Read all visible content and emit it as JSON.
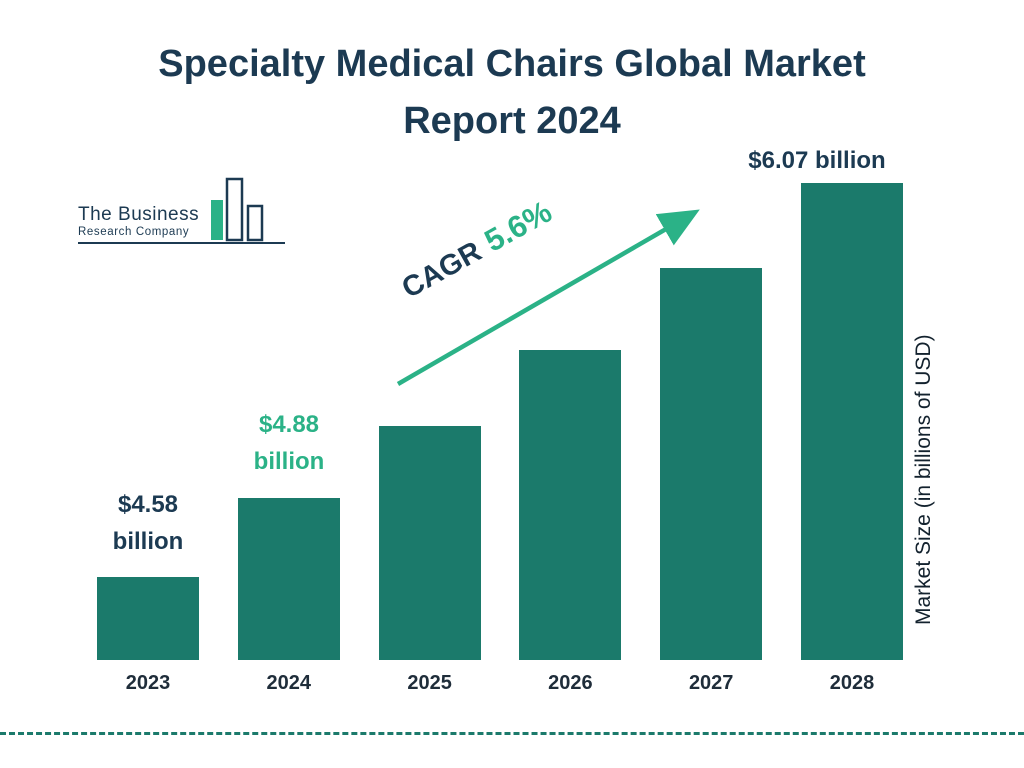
{
  "title": {
    "line1": "Specialty Medical Chairs Global Market",
    "line2": "Report 2024"
  },
  "logo": {
    "line1": "The Business",
    "line2": "Research Company"
  },
  "cagr": {
    "prefix": "CAGR",
    "value": "5.6%"
  },
  "y_axis_label": "Market Size (in billions of USD)",
  "labels": {
    "y2023": {
      "line1": "$4.58",
      "line2": "billion"
    },
    "y2024": {
      "line1": "$4.88",
      "line2": "billion"
    },
    "y2028": {
      "line1": "$6.07 billion"
    }
  },
  "colors": {
    "bar": "#1B7A6B",
    "title_navy": "#1C3A52",
    "accent_green": "#2BB287",
    "dashed_line": "#1B7A6B"
  },
  "chart_data": {
    "type": "bar",
    "title": "Specialty Medical Chairs Global Market Report 2024",
    "categories": [
      "2023",
      "2024",
      "2025",
      "2026",
      "2027",
      "2028"
    ],
    "values": [
      4.58,
      4.88,
      5.15,
      5.44,
      5.75,
      6.07
    ],
    "labeled_values": {
      "2023": "$4.58 billion",
      "2024": "$4.88 billion",
      "2028": "$6.07 billion"
    },
    "cagr_percent": 5.6,
    "xlabel": "",
    "ylabel": "Market Size (in billions of USD)",
    "legend": "none",
    "grid": "off",
    "bar_color": "#1B7A6B",
    "units": "billions of USD"
  }
}
